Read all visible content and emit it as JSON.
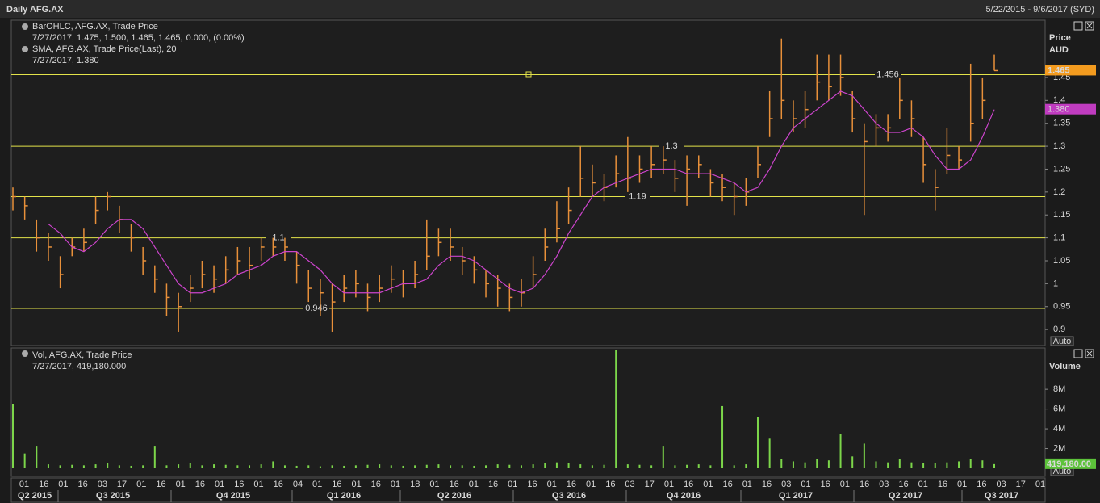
{
  "header": {
    "title": "Daily AFG.AX",
    "range": "5/22/2015 - 9/6/2017 (SYD)"
  },
  "chart_data": [
    {
      "type": "ohlc",
      "y_axis_title": "Price",
      "unit": "AUD",
      "scale_button": "Auto",
      "ylim": [
        0.865,
        1.575
      ],
      "yticks": [
        0.9,
        0.95,
        1,
        1.05,
        1.1,
        1.15,
        1.2,
        1.25,
        1.3,
        1.35,
        1.4,
        1.45
      ],
      "grid": false,
      "levels": [
        1.456,
        1.3,
        1.19,
        1.1,
        0.946
      ],
      "level_color": "#e3e34a",
      "series": [
        {
          "name": "BarOHLC, AFG.AX, Trade Price",
          "detail": "7/27/2017, 1.475, 1.500, 1.465, 1.465,",
          "change": "0.000, (0.00%)",
          "color": "#e8903a",
          "high": [
            1.21,
            1.19,
            1.14,
            1.11,
            1.06,
            1.1,
            1.12,
            1.19,
            1.2,
            1.17,
            1.13,
            1.08,
            1.04,
            1.0,
            0.98,
            1.02,
            1.05,
            1.04,
            1.06,
            1.08,
            1.08,
            1.1,
            1.1,
            1.1,
            1.07,
            1.03,
            1.01,
            1.0,
            1.02,
            1.03,
            1.0,
            1.02,
            1.04,
            1.03,
            1.05,
            1.14,
            1.12,
            1.12,
            1.08,
            1.06,
            1.03,
            1.02,
            1.0,
            1.01,
            1.06,
            1.12,
            1.18,
            1.21,
            1.3,
            1.26,
            1.24,
            1.28,
            1.32,
            1.28,
            1.3,
            1.3,
            1.27,
            1.28,
            1.28,
            1.25,
            1.24,
            1.22,
            1.23,
            1.3,
            1.42,
            1.535,
            1.4,
            1.42,
            1.5,
            1.5,
            1.5,
            1.42,
            1.35,
            1.37,
            1.37,
            1.45,
            1.4,
            1.32,
            1.25,
            1.34,
            1.3,
            1.48,
            1.45,
            1.5
          ],
          "low": [
            1.16,
            1.14,
            1.07,
            1.05,
            0.99,
            1.06,
            1.07,
            1.13,
            1.16,
            1.11,
            1.07,
            1.02,
            0.98,
            0.93,
            0.895,
            0.96,
            0.99,
            0.98,
            1.0,
            1.02,
            1.01,
            1.05,
            1.06,
            1.05,
            1.0,
            0.96,
            0.93,
            0.895,
            0.96,
            0.97,
            0.94,
            0.96,
            0.98,
            0.97,
            0.99,
            1.03,
            1.06,
            1.05,
            1.02,
            1.0,
            0.97,
            0.95,
            0.94,
            0.95,
            0.99,
            1.05,
            1.09,
            1.13,
            1.19,
            1.19,
            1.18,
            1.21,
            1.2,
            1.22,
            1.23,
            1.24,
            1.2,
            1.17,
            1.23,
            1.19,
            1.18,
            1.15,
            1.17,
            1.23,
            1.32,
            1.36,
            1.33,
            1.34,
            1.4,
            1.4,
            1.41,
            1.33,
            1.15,
            1.3,
            1.31,
            1.36,
            1.32,
            1.22,
            1.16,
            1.24,
            1.25,
            1.31,
            1.36,
            1.465
          ],
          "values": [
            1.19,
            1.17,
            1.1,
            1.08,
            1.02,
            1.08,
            1.09,
            1.16,
            1.19,
            1.14,
            1.1,
            1.05,
            1.01,
            0.97,
            0.95,
            0.99,
            1.02,
            1.01,
            1.03,
            1.05,
            1.04,
            1.08,
            1.08,
            1.08,
            1.04,
            0.99,
            0.98,
            0.96,
            0.99,
            1.0,
            0.97,
            0.99,
            1.01,
            1.0,
            1.02,
            1.06,
            1.09,
            1.08,
            1.05,
            1.03,
            1.0,
            0.99,
            0.97,
            0.98,
            1.02,
            1.08,
            1.12,
            1.16,
            1.23,
            1.22,
            1.21,
            1.24,
            1.23,
            1.25,
            1.26,
            1.27,
            1.23,
            1.25,
            1.26,
            1.22,
            1.21,
            1.19,
            1.2,
            1.26,
            1.36,
            1.4,
            1.36,
            1.38,
            1.44,
            1.43,
            1.45,
            1.36,
            1.31,
            1.34,
            1.34,
            1.4,
            1.36,
            1.26,
            1.21,
            1.28,
            1.27,
            1.35,
            1.4,
            1.465
          ]
        },
        {
          "name": "SMA, AFG.AX, Trade Price(Last), 20",
          "detail": "7/27/2017, 1.380",
          "color": "#cc44cc",
          "last_label": "1.380",
          "values": [
            null,
            null,
            null,
            1.13,
            1.11,
            1.08,
            1.07,
            1.09,
            1.12,
            1.14,
            1.14,
            1.12,
            1.08,
            1.04,
            1.0,
            0.98,
            0.98,
            0.99,
            1.0,
            1.02,
            1.03,
            1.04,
            1.06,
            1.07,
            1.07,
            1.05,
            1.03,
            1.0,
            0.98,
            0.98,
            0.98,
            0.98,
            0.99,
            1.0,
            1.0,
            1.01,
            1.04,
            1.06,
            1.06,
            1.05,
            1.03,
            1.01,
            0.99,
            0.98,
            0.99,
            1.02,
            1.06,
            1.11,
            1.15,
            1.19,
            1.21,
            1.22,
            1.23,
            1.24,
            1.25,
            1.25,
            1.25,
            1.24,
            1.24,
            1.24,
            1.23,
            1.22,
            1.2,
            1.21,
            1.25,
            1.3,
            1.34,
            1.36,
            1.38,
            1.4,
            1.42,
            1.41,
            1.38,
            1.35,
            1.33,
            1.33,
            1.34,
            1.32,
            1.28,
            1.25,
            1.25,
            1.27,
            1.32,
            1.38
          ]
        }
      ]
    },
    {
      "type": "bar",
      "y_axis_title": "Volume",
      "scale_button": "Auto",
      "ylim": [
        0,
        12100000
      ],
      "yticks": [
        {
          "value": 2000000,
          "label": "2M"
        },
        {
          "value": 4000000,
          "label": "4M"
        },
        {
          "value": 6000000,
          "label": "6M"
        },
        {
          "value": 8000000,
          "label": "8M"
        }
      ],
      "series": [
        {
          "name": "Vol, AFG.AX, Trade Price",
          "detail": "7/27/2017, 419,180.000",
          "color": "#7cd64a",
          "last_label": "419,180.00",
          "values": [
            6500000,
            1500000,
            2200000,
            400000,
            300000,
            350000,
            300000,
            400000,
            500000,
            300000,
            250000,
            300000,
            2200000,
            300000,
            400000,
            500000,
            300000,
            400000,
            350000,
            300000,
            300000,
            400000,
            700000,
            300000,
            250000,
            300000,
            200000,
            300000,
            250000,
            300000,
            350000,
            400000,
            300000,
            250000,
            300000,
            350000,
            400000,
            300000,
            300000,
            250000,
            300000,
            400000,
            350000,
            300000,
            400000,
            500000,
            600000,
            500000,
            400000,
            300000,
            350000,
            12000000,
            400000,
            350000,
            300000,
            2200000,
            300000,
            350000,
            400000,
            300000,
            6300000,
            300000,
            400000,
            5200000,
            3000000,
            900000,
            700000,
            600000,
            900000,
            800000,
            3500000,
            1200000,
            2500000,
            700000,
            600000,
            900000,
            600000,
            500000,
            500000,
            600000,
            700000,
            900000,
            800000,
            419180
          ]
        }
      ],
      "x_axis_labels": [
        "01",
        "16",
        "01",
        "16",
        "03",
        "17",
        "01",
        "16",
        "01",
        "16",
        "01",
        "16",
        "01",
        "16",
        "04",
        "01",
        "16",
        "01",
        "16",
        "01",
        "18",
        "01",
        "16",
        "01",
        "16",
        "01",
        "16",
        "01",
        "16",
        "01",
        "16",
        "03",
        "17",
        "01",
        "16",
        "01",
        "16",
        "01",
        "16",
        "03",
        "01",
        "16",
        "01",
        "16",
        "03",
        "16",
        "01",
        "16",
        "01",
        "16",
        "03",
        "17",
        "01"
      ],
      "quarters": [
        "Q2 2015",
        "Q3 2015",
        "Q4 2015",
        "Q1 2016",
        "Q2 2016",
        "Q3 2016",
        "Q4 2016",
        "Q1 2017",
        "Q2 2017",
        "Q3 2017"
      ]
    }
  ]
}
